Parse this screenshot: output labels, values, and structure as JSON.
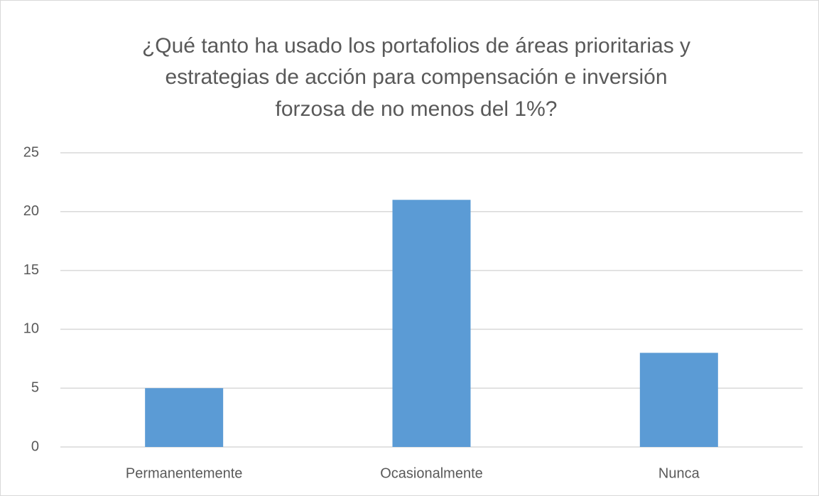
{
  "chart_data": {
    "type": "bar",
    "title": [
      "¿Qué tanto ha usado los portafolios de áreas prioritarias y",
      "estrategias de acción para compensación e inversión",
      "forzosa de no menos del 1%?"
    ],
    "categories": [
      "Permanentemente",
      "Ocasionalmente",
      "Nunca"
    ],
    "values": [
      5,
      21,
      8
    ],
    "color": "#5b9bd5",
    "ylim": [
      0,
      25
    ],
    "yticks": [
      0,
      5,
      10,
      15,
      20,
      25
    ],
    "grid": true
  }
}
